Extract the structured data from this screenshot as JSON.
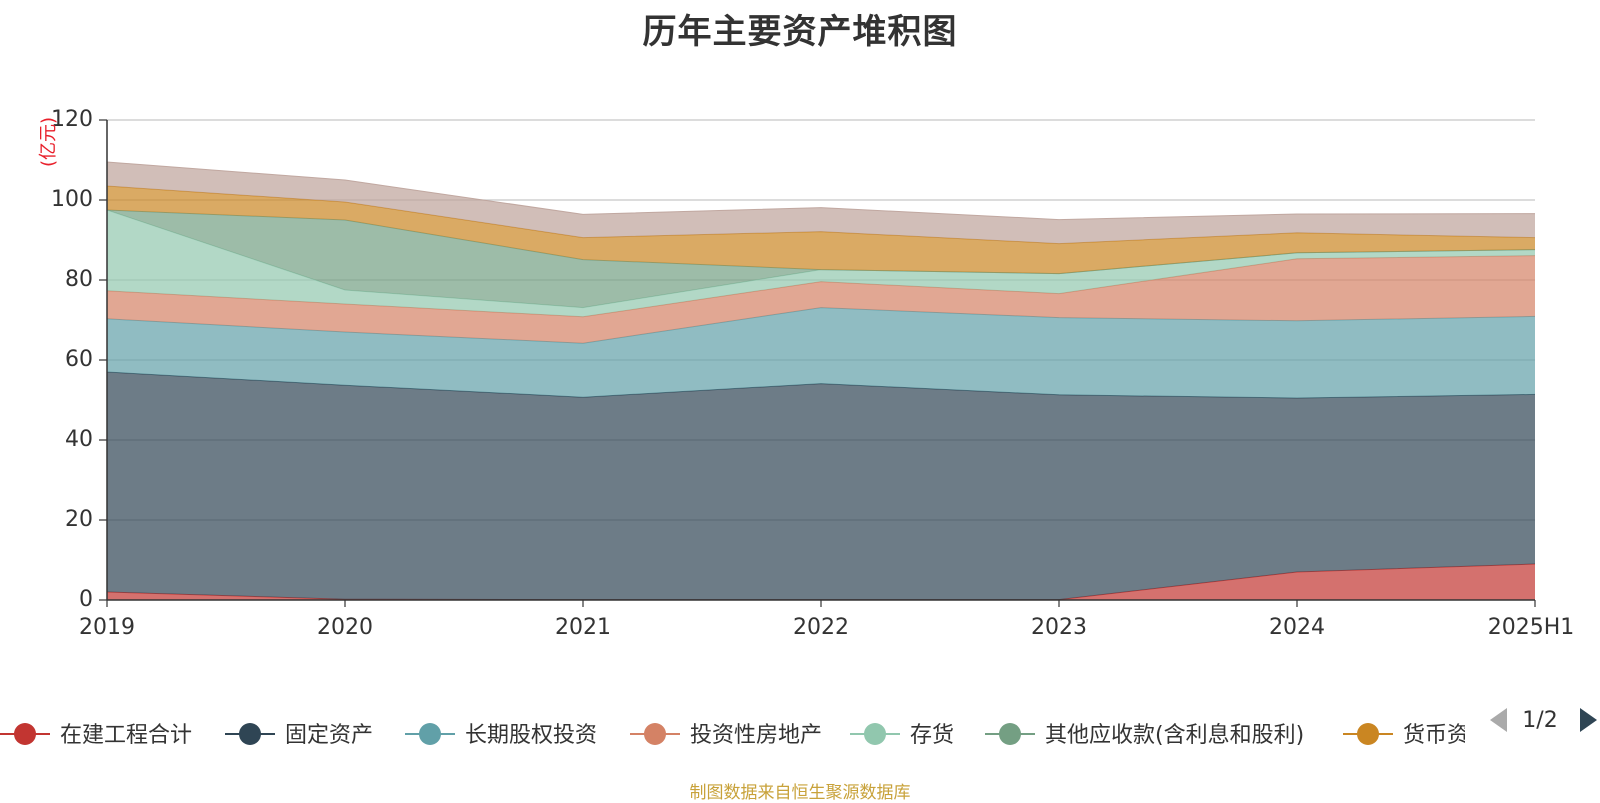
{
  "chart_data": {
    "type": "area",
    "stacked": true,
    "title": "历年主要资产堆积图",
    "unit_label": "(亿元)",
    "x": [
      "2019",
      "2020",
      "2021",
      "2022",
      "2023",
      "2024",
      "2025H1"
    ],
    "ylim": [
      0,
      120
    ],
    "yticks": [
      0,
      20,
      40,
      60,
      80,
      100,
      120
    ],
    "grid": true,
    "series": [
      {
        "name": "在建工程合计",
        "color": "#c23531",
        "values": [
          2.0,
          0.2,
          0.1,
          0.1,
          0.1,
          7.0,
          9.0
        ]
      },
      {
        "name": "固定资产",
        "color": "#2f4554",
        "values": [
          55.0,
          53.5,
          50.6,
          54.0,
          51.2,
          43.5,
          42.4
        ]
      },
      {
        "name": "长期股权投资",
        "color": "#61a0a8",
        "values": [
          13.3,
          13.3,
          13.5,
          19.0,
          19.3,
          19.3,
          19.5
        ]
      },
      {
        "name": "投资性房地产",
        "color": "#d48265",
        "values": [
          7.0,
          7.0,
          6.6,
          6.5,
          6.0,
          15.5,
          15.2
        ]
      },
      {
        "name": "存货",
        "color": "#91c7ae",
        "values": [
          20.2,
          3.5,
          2.3,
          3.0,
          5.0,
          1.5,
          1.5
        ]
      },
      {
        "name": "其他应收款(含利息和股利)",
        "color": "#749f83",
        "values": [
          0.0,
          17.5,
          12.0,
          0.0,
          0.0,
          0.0,
          0.0
        ]
      },
      {
        "name": "货币资金",
        "color": "#ca8622",
        "values": [
          6.0,
          4.5,
          5.5,
          9.5,
          7.5,
          5.0,
          3.0
        ]
      },
      {
        "name": "",
        "color": "#bda29a",
        "values": [
          6.0,
          5.5,
          5.8,
          6.0,
          6.0,
          4.7,
          6.0
        ]
      }
    ],
    "legend_position": "bottom"
  },
  "legend": {
    "items": [
      "在建工程合计",
      "固定资产",
      "长期股权投资",
      "投资性房地产",
      "存货",
      "其他应收款(含利息和股利)",
      "货币资金"
    ],
    "page_indicator": "1/2"
  },
  "source_note": "制图数据来自恒生聚源数据库"
}
